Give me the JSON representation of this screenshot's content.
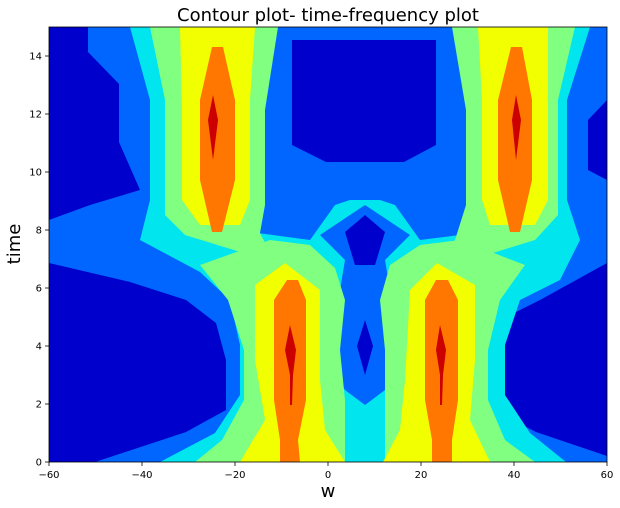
{
  "chart_data": {
    "type": "heatmap",
    "subtype": "filled-contour",
    "title": "Contour plot- time-frequency plot",
    "xlabel": "w",
    "ylabel": "time",
    "xlim": [
      -60,
      60
    ],
    "ylim": [
      0,
      15
    ],
    "xticks": [
      "−60",
      "−40",
      "−20",
      "0",
      "20",
      "40",
      "60"
    ],
    "yticks": [
      "0",
      "2",
      "4",
      "6",
      "8",
      "10",
      "12",
      "14"
    ],
    "grid": false,
    "colormap": [
      "#0000cc",
      "#0066ff",
      "#00e5ee",
      "#80ff80",
      "#f2ff00",
      "#ff7700",
      "#cc0000"
    ],
    "peaks": [
      {
        "w": -25,
        "t": 12
      },
      {
        "w": 41,
        "t": 12
      },
      {
        "w": -8,
        "t": 4
      },
      {
        "w": 25,
        "t": 4
      }
    ]
  }
}
